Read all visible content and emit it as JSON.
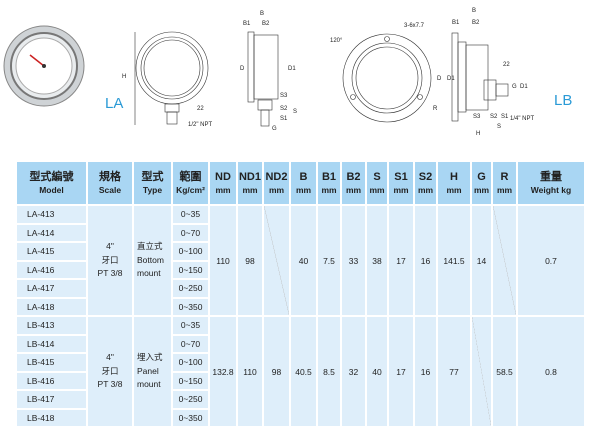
{
  "drawings": {
    "la_label": "LA",
    "lb_label": "LB",
    "la_front": {
      "h": "H",
      "hex": "22",
      "thread": "1/2\" NPT"
    },
    "la_side": {
      "b": "B",
      "b1": "B1",
      "b2": "B2",
      "d": "D",
      "d1": "D1",
      "s": "S",
      "s1": "S1",
      "s2": "S2",
      "s3": "S3",
      "g": "G"
    },
    "lb_front": {
      "angle": "120°",
      "holes": "3-6x7.7",
      "d": "D",
      "r": "R"
    },
    "lb_side": {
      "b": "B",
      "b1": "B1",
      "b2": "B2",
      "d1": "D1",
      "hex": "22",
      "g": "G",
      "d1b": "D1",
      "s3": "S3",
      "s2": "S2",
      "s1": "S1",
      "thread": "1/4\" NPT",
      "s": "S",
      "h": "H"
    }
  },
  "table": {
    "headers": [
      {
        "zh": "型式編號",
        "en": "Model"
      },
      {
        "zh": "規格",
        "en": "Scale"
      },
      {
        "zh": "型式",
        "en": "Type"
      },
      {
        "zh": "範圍",
        "en": "Kg/cm²"
      },
      {
        "zh": "ND",
        "en": "mm"
      },
      {
        "zh": "ND1",
        "en": "mm"
      },
      {
        "zh": "ND2",
        "en": "mm"
      },
      {
        "zh": "B",
        "en": "mm"
      },
      {
        "zh": "B1",
        "en": "mm"
      },
      {
        "zh": "B2",
        "en": "mm"
      },
      {
        "zh": "S",
        "en": "mm"
      },
      {
        "zh": "S1",
        "en": "mm"
      },
      {
        "zh": "S2",
        "en": "mm"
      },
      {
        "zh": "H",
        "en": "mm"
      },
      {
        "zh": "G",
        "en": "mm"
      },
      {
        "zh": "R",
        "en": "mm"
      },
      {
        "zh": "重量",
        "en": "Weight kg"
      }
    ],
    "groups": [
      {
        "models": [
          "LA-413",
          "LA-414",
          "LA-415",
          "LA-416",
          "LA-417",
          "LA-418"
        ],
        "ranges": [
          "0~35",
          "0~70",
          "0~100",
          "0~150",
          "0~250",
          "0~350"
        ],
        "scale": [
          "4\"",
          "牙口",
          "PT 3/8"
        ],
        "type": [
          "直立式",
          "Bottom",
          "mount"
        ],
        "nd": "110",
        "nd1": "98",
        "nd2": "",
        "b": "40",
        "b1": "7.5",
        "b2": "33",
        "s": "38",
        "s1": "17",
        "s2": "16",
        "h": "141.5",
        "g": "14",
        "r": "",
        "weight": "0.7"
      },
      {
        "models": [
          "LB-413",
          "LB-414",
          "LB-415",
          "LB-416",
          "LB-417",
          "LB-418"
        ],
        "ranges": [
          "0~35",
          "0~70",
          "0~100",
          "0~150",
          "0~250",
          "0~350"
        ],
        "scale": [
          "4\"",
          "牙口",
          "PT 3/8"
        ],
        "type": [
          "埋入式",
          "Panel",
          "mount"
        ],
        "nd": "132.8",
        "nd1": "110",
        "nd2": "98",
        "b": "40.5",
        "b1": "8.5",
        "b2": "32",
        "s": "40",
        "s1": "17",
        "s2": "16",
        "h": "77",
        "g": "",
        "r": "58.5",
        "weight": "0.8"
      }
    ]
  }
}
